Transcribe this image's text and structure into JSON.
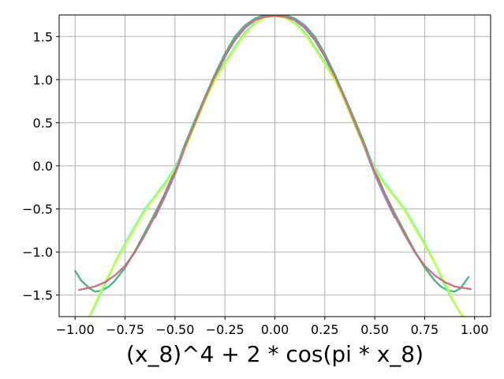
{
  "chart_data": {
    "type": "line",
    "xlabel": "(x_8)^4 + 2 * cos(pi * x_8)",
    "ylabel": "",
    "xlim": [
      -1.08,
      1.08
    ],
    "ylim": [
      -1.75,
      1.75
    ],
    "grid": true,
    "x_ticks": [
      -1.0,
      -0.75,
      -0.5,
      -0.25,
      0.0,
      0.25,
      0.5,
      0.75,
      1.0
    ],
    "x_tick_labels": [
      "−1.00",
      "−0.75",
      "−0.50",
      "−0.25",
      "0.00",
      "0.25",
      "0.50",
      "0.75",
      "1.00"
    ],
    "y_ticks": [
      -1.5,
      -1.0,
      -0.5,
      0.0,
      0.5,
      1.0,
      1.5
    ],
    "y_tick_labels": [
      "−1.5",
      "−1.0",
      "−0.5",
      "0.0",
      "0.5",
      "1.0",
      "1.5"
    ],
    "series": [
      {
        "color": "#3cb371",
        "x": [
          -1.0,
          -0.97,
          -0.93,
          -0.9,
          -0.87,
          -0.83,
          -0.8,
          -0.75,
          -0.7,
          -0.65,
          -0.6,
          -0.55,
          -0.5,
          -0.45,
          -0.4,
          -0.35,
          -0.3,
          -0.25,
          -0.2,
          -0.15,
          -0.1,
          -0.05,
          0.0,
          0.05,
          0.1,
          0.15,
          0.2,
          0.25,
          0.3,
          0.35,
          0.4,
          0.45,
          0.5,
          0.55,
          0.6,
          0.65,
          0.7,
          0.75,
          0.8,
          0.83,
          0.87,
          0.9,
          0.93,
          0.97
        ],
        "y": [
          -1.22,
          -1.33,
          -1.42,
          -1.46,
          -1.45,
          -1.4,
          -1.33,
          -1.18,
          -0.99,
          -0.77,
          -0.55,
          -0.32,
          -0.05,
          0.25,
          0.53,
          0.8,
          1.06,
          1.3,
          1.5,
          1.63,
          1.71,
          1.75,
          1.76,
          1.75,
          1.71,
          1.63,
          1.5,
          1.3,
          1.06,
          0.8,
          0.53,
          0.25,
          -0.05,
          -0.32,
          -0.55,
          -0.77,
          -0.99,
          -1.18,
          -1.33,
          -1.4,
          -1.45,
          -1.46,
          -1.42,
          -1.29
        ]
      },
      {
        "color": "#7b9acc",
        "x": [
          -0.6,
          -0.55,
          -0.5,
          -0.45,
          -0.4,
          -0.35,
          -0.3,
          -0.25,
          -0.2,
          -0.15,
          -0.1,
          -0.05,
          0.0,
          0.05,
          0.1,
          0.15,
          0.2,
          0.25,
          0.3,
          0.35,
          0.4,
          0.45,
          0.5,
          0.55,
          0.6
        ],
        "y": [
          -0.6,
          -0.36,
          -0.1,
          0.2,
          0.48,
          0.76,
          1.02,
          1.27,
          1.47,
          1.62,
          1.7,
          1.74,
          1.75,
          1.74,
          1.7,
          1.62,
          1.47,
          1.27,
          1.02,
          0.76,
          0.48,
          0.2,
          -0.1,
          -0.36,
          -0.6
        ]
      },
      {
        "color": "#40ffd0",
        "x": [
          -0.92,
          -0.88,
          -0.84,
          -0.8,
          -0.75,
          -0.7,
          -0.65,
          -0.6,
          -0.55,
          -0.5,
          -0.45,
          -0.4,
          -0.35,
          -0.3,
          -0.25,
          -0.2,
          -0.15,
          -0.1,
          -0.05,
          0.0,
          0.05,
          0.1,
          0.15,
          0.2,
          0.25,
          0.3,
          0.35,
          0.4,
          0.45,
          0.5,
          0.55,
          0.6,
          0.65,
          0.7,
          0.75,
          0.8,
          0.84,
          0.88,
          0.92,
          0.94
        ],
        "y": [
          -1.72,
          -1.52,
          -1.33,
          -1.12,
          -0.9,
          -0.7,
          -0.5,
          -0.35,
          -0.2,
          -0.02,
          0.22,
          0.5,
          0.78,
          1.02,
          1.2,
          1.38,
          1.55,
          1.66,
          1.72,
          1.74,
          1.72,
          1.66,
          1.55,
          1.38,
          1.2,
          1.02,
          0.78,
          0.5,
          0.22,
          -0.02,
          -0.2,
          -0.35,
          -0.5,
          -0.7,
          -0.9,
          -1.12,
          -1.33,
          -1.52,
          -1.68,
          -1.75
        ]
      },
      {
        "color": "#ccff33",
        "x": [
          -0.93,
          -0.89,
          -0.85,
          -0.8,
          -0.75,
          -0.7,
          -0.65,
          -0.6,
          -0.55,
          -0.5,
          -0.45,
          -0.4,
          -0.35,
          -0.3,
          -0.25,
          -0.2,
          -0.15,
          -0.1,
          -0.05,
          0.0,
          0.05,
          0.1,
          0.15,
          0.2,
          0.25,
          0.3,
          0.35,
          0.4,
          0.45,
          0.5,
          0.55,
          0.6,
          0.65,
          0.7,
          0.75,
          0.8,
          0.85,
          0.89,
          0.93,
          0.95
        ],
        "y": [
          -1.75,
          -1.55,
          -1.35,
          -1.13,
          -0.92,
          -0.72,
          -0.52,
          -0.36,
          -0.22,
          -0.04,
          0.2,
          0.47,
          0.75,
          0.99,
          1.18,
          1.36,
          1.53,
          1.65,
          1.72,
          1.74,
          1.72,
          1.65,
          1.53,
          1.36,
          1.18,
          0.99,
          0.75,
          0.47,
          0.2,
          -0.04,
          -0.22,
          -0.36,
          -0.52,
          -0.72,
          -0.92,
          -1.13,
          -1.35,
          -1.55,
          -1.72,
          -1.75
        ]
      },
      {
        "color": "#cc6680",
        "x": [
          -0.98,
          -0.9,
          -0.85,
          -0.8,
          -0.75,
          -0.7,
          -0.65,
          -0.6,
          -0.55,
          -0.5,
          -0.45,
          -0.4,
          -0.35,
          -0.3,
          -0.25,
          -0.2,
          -0.15,
          -0.1,
          -0.05,
          0.0,
          0.05,
          0.1,
          0.15,
          0.2,
          0.25,
          0.3,
          0.35,
          0.4,
          0.45,
          0.5,
          0.55,
          0.6,
          0.65,
          0.7,
          0.75,
          0.8,
          0.85,
          0.9,
          0.98
        ],
        "y": [
          -1.44,
          -1.4,
          -1.35,
          -1.27,
          -1.16,
          -1.0,
          -0.8,
          -0.58,
          -0.33,
          -0.07,
          0.22,
          0.5,
          0.78,
          1.04,
          1.27,
          1.46,
          1.6,
          1.69,
          1.73,
          1.74,
          1.73,
          1.69,
          1.6,
          1.46,
          1.27,
          1.04,
          0.78,
          0.5,
          0.22,
          -0.07,
          -0.33,
          -0.58,
          -0.8,
          -1.0,
          -1.16,
          -1.27,
          -1.35,
          -1.4,
          -1.43
        ]
      }
    ]
  }
}
